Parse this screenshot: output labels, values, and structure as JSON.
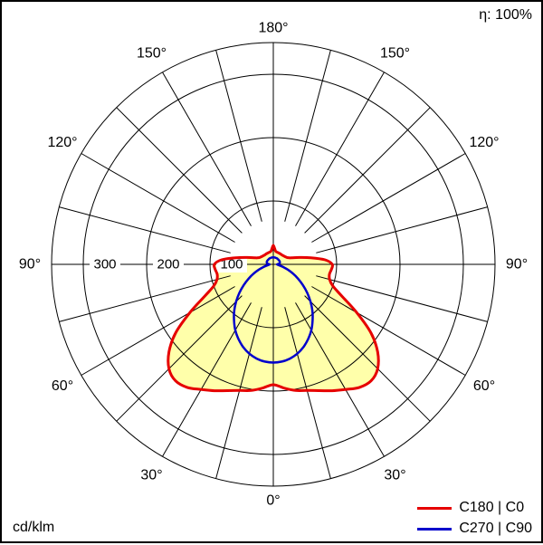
{
  "corner_labels": {
    "efficiency": "η: 100%",
    "units": "cd/klm"
  },
  "legend": {
    "items": [
      {
        "label": "C180 | C0"
      },
      {
        "label": "C270 | C90"
      }
    ]
  },
  "chart_data": {
    "type": "line",
    "subtype": "polar-photometric-intensity-distribution",
    "radial_unit": "cd/klm",
    "grid_color": "#000000",
    "background_color": "#ffffff",
    "gamma_range_deg": [
      0,
      180
    ],
    "spoke_step_deg": 15,
    "radial_ticks": [
      {
        "value": 100,
        "label": "100"
      },
      {
        "value": 200,
        "label": "200"
      },
      {
        "value": 300,
        "label": "300"
      }
    ],
    "outer_radius_value": 350,
    "angle_tick_labels": [
      {
        "deg": 0,
        "label": "0°"
      },
      {
        "deg": 30,
        "label": "30°"
      },
      {
        "deg": 60,
        "label": "60°"
      },
      {
        "deg": 90,
        "label": "90°"
      },
      {
        "deg": 120,
        "label": "120°"
      },
      {
        "deg": 150,
        "label": "150°"
      },
      {
        "deg": 180,
        "label": "180°"
      }
    ],
    "series": [
      {
        "name": "C180 | C0",
        "color": "#e60000",
        "fill": "#ffffaa",
        "symmetric": true,
        "points": [
          [
            0,
            190
          ],
          [
            5,
            196
          ],
          [
            10,
            202
          ],
          [
            15,
            206
          ],
          [
            20,
            212
          ],
          [
            25,
            220
          ],
          [
            30,
            228
          ],
          [
            35,
            237
          ],
          [
            40,
            240
          ],
          [
            45,
            233
          ],
          [
            50,
            215
          ],
          [
            55,
            188
          ],
          [
            60,
            152
          ],
          [
            65,
            120
          ],
          [
            70,
            100
          ],
          [
            75,
            92
          ],
          [
            80,
            90
          ],
          [
            85,
            92
          ],
          [
            90,
            93
          ],
          [
            95,
            82
          ],
          [
            100,
            60
          ],
          [
            105,
            42
          ],
          [
            110,
            30
          ],
          [
            115,
            25
          ],
          [
            120,
            23
          ],
          [
            130,
            21
          ],
          [
            140,
            20
          ],
          [
            150,
            20
          ],
          [
            160,
            20
          ],
          [
            170,
            21
          ],
          [
            175,
            25
          ],
          [
            180,
            30
          ]
        ]
      },
      {
        "name": "C270 | C90",
        "color": "#0000cc",
        "fill": null,
        "symmetric": true,
        "points": [
          [
            0,
            155
          ],
          [
            5,
            154
          ],
          [
            10,
            151
          ],
          [
            15,
            146
          ],
          [
            20,
            139
          ],
          [
            25,
            130
          ],
          [
            30,
            120
          ],
          [
            35,
            108
          ],
          [
            40,
            96
          ],
          [
            45,
            83
          ],
          [
            50,
            70
          ],
          [
            55,
            57
          ],
          [
            60,
            45
          ],
          [
            65,
            34
          ],
          [
            70,
            24
          ],
          [
            75,
            16
          ],
          [
            80,
            10
          ],
          [
            85,
            7
          ],
          [
            90,
            6
          ],
          [
            95,
            8
          ],
          [
            100,
            10
          ],
          [
            110,
            11
          ],
          [
            120,
            11
          ],
          [
            130,
            11
          ],
          [
            140,
            11
          ],
          [
            150,
            11
          ],
          [
            160,
            11
          ],
          [
            170,
            11
          ],
          [
            180,
            11
          ]
        ]
      }
    ]
  }
}
